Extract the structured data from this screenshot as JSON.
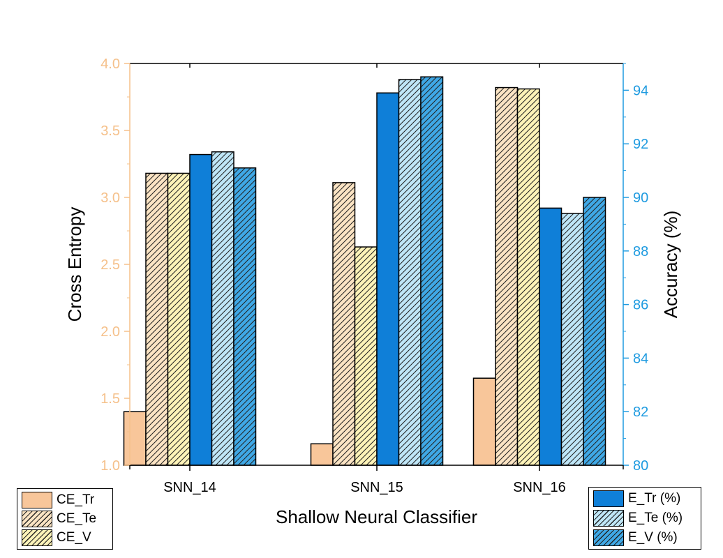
{
  "chart_data": {
    "type": "bar",
    "xlabel": "Shallow Neural Classifier",
    "categories": [
      "SNN_14",
      "SNN_15",
      "SNN_16"
    ],
    "left_axis": {
      "label": "Cross Entropy",
      "ylim": [
        1.0,
        4.0
      ],
      "ticks": [
        "1.0",
        "1.5",
        "2.0",
        "2.5",
        "3.0",
        "3.5",
        "4.0"
      ],
      "color": "#f5c08a"
    },
    "right_axis": {
      "label": "Accuracy (%)",
      "ylim": [
        80,
        95
      ],
      "ticks": [
        "80",
        "82",
        "84",
        "86",
        "88",
        "90",
        "92",
        "94"
      ],
      "color": "#1f9be0"
    },
    "series": [
      {
        "name": "CE_Tr",
        "axis": "left",
        "values": [
          1.4,
          1.16,
          1.65
        ],
        "fill": "#f8c69a",
        "hatch": false
      },
      {
        "name": "CE_Te",
        "axis": "left",
        "values": [
          3.18,
          3.11,
          3.82
        ],
        "fill": "#fbe4c4",
        "hatch": true
      },
      {
        "name": "CE_V",
        "axis": "left",
        "values": [
          3.18,
          2.63,
          3.81
        ],
        "fill": "#fdf3b8",
        "hatch": true
      },
      {
        "name": "E_Tr (%)",
        "axis": "right",
        "values": [
          91.6,
          93.9,
          89.6
        ],
        "fill": "#0f7fd8",
        "hatch": false
      },
      {
        "name": "E_Te (%)",
        "axis": "right",
        "values": [
          91.7,
          94.4,
          89.4
        ],
        "fill": "#bfe6f7",
        "hatch": true
      },
      {
        "name": "E_V (%)",
        "axis": "right",
        "values": [
          91.1,
          94.5,
          90.0
        ],
        "fill": "#3fa8e6",
        "hatch": true
      }
    ],
    "grid": false,
    "legend": [
      "bottom-left",
      "bottom-right"
    ]
  }
}
